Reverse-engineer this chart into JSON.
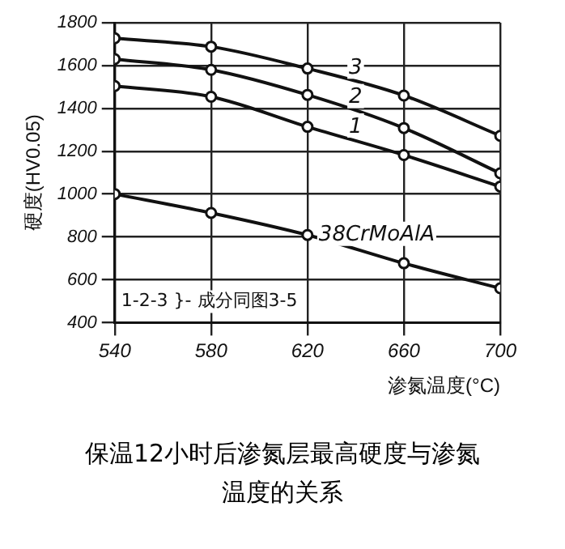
{
  "chart_data": {
    "type": "line",
    "title": "保温12小时后渗氮层最高硬度与渗氮温度的关系",
    "xlabel": "渗氮温度(°C)",
    "ylabel": "硬度(HV0.05)",
    "x": [
      540,
      580,
      620,
      660,
      700
    ],
    "series": [
      {
        "name": "3",
        "color": "#111111",
        "values": [
          1727,
          1688,
          1586,
          1460,
          1272
        ]
      },
      {
        "name": "2",
        "color": "#111111",
        "values": [
          1630,
          1580,
          1463,
          1308,
          1097
        ]
      },
      {
        "name": "1",
        "color": "#111111",
        "values": [
          1504,
          1454,
          1314,
          1182,
          1035
        ]
      },
      {
        "name": "38CrMoAlA",
        "color": "#111111",
        "values": [
          1000,
          912,
          809,
          677,
          560
        ]
      }
    ],
    "xlim": [
      540,
      700
    ],
    "xticks": [
      540,
      580,
      620,
      660,
      700
    ],
    "ylim": [
      400,
      1800
    ],
    "yticks": [
      400,
      600,
      800,
      1000,
      1200,
      1400,
      1600,
      1800
    ],
    "grid": true,
    "legend": false,
    "marker": "circle",
    "line_style": "solid",
    "annotations": [
      "1-2-3 }- 成分同图3-5"
    ]
  }
}
